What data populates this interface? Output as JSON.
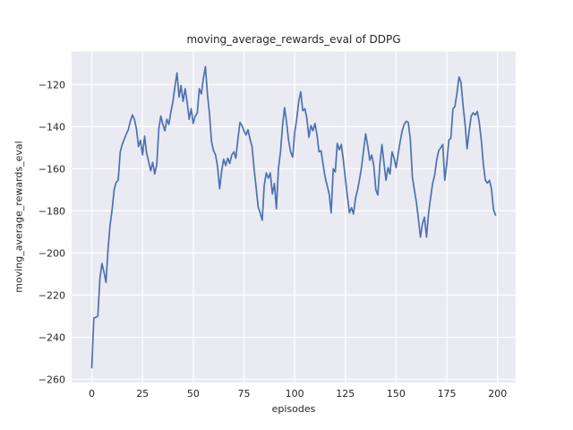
{
  "figure": {
    "background": "#ffffff"
  },
  "chart_data": {
    "type": "line",
    "title": "moving_average_rewards_eval of DDPG",
    "xlabel": "episodes",
    "ylabel": "moving_average_rewards_eval",
    "legend": "none",
    "grid": true,
    "style": {
      "axes_background": "#eaeaf2",
      "grid_color": "#ffffff",
      "line_color": "#4c72b0",
      "tick_label_color": "#262626",
      "line_width": 1.7
    },
    "xlim": [
      -9.95,
      208.95
    ],
    "ylim": [
      -261.6,
      -104.4
    ],
    "xticks": [
      0,
      25,
      50,
      75,
      100,
      125,
      150,
      175,
      200
    ],
    "yticks": [
      -120,
      -140,
      -160,
      -180,
      -200,
      -220,
      -240,
      -260
    ],
    "x_start": 0,
    "x_step": 1,
    "values": [
      -254.5,
      -231,
      -230.5,
      -230,
      -212,
      -205,
      -209,
      -214,
      -198,
      -187,
      -179.5,
      -170,
      -166.5,
      -165.5,
      -152,
      -148.5,
      -146,
      -143.5,
      -141.5,
      -137.5,
      -134.5,
      -136.5,
      -141,
      -149.5,
      -146.5,
      -153.5,
      -144.5,
      -152.5,
      -156.5,
      -161,
      -157,
      -162.5,
      -158,
      -141.5,
      -135,
      -139,
      -142,
      -136.5,
      -139,
      -133,
      -128,
      -121,
      -114.5,
      -126,
      -120.5,
      -128,
      -122,
      -128.5,
      -136.5,
      -131.5,
      -138.5,
      -135,
      -133.5,
      -122,
      -124.5,
      -117,
      -111.5,
      -124.5,
      -134,
      -147,
      -151.5,
      -153.5,
      -159,
      -169.5,
      -161,
      -155.5,
      -158.5,
      -155,
      -157.5,
      -153.5,
      -152,
      -155,
      -146,
      -138,
      -139.5,
      -142,
      -144,
      -141.5,
      -146,
      -149.5,
      -160,
      -169,
      -178,
      -181,
      -184.5,
      -168,
      -162,
      -164.5,
      -162,
      -172,
      -167,
      -179,
      -160,
      -152,
      -140,
      -131,
      -138,
      -146.5,
      -152,
      -154.5,
      -143,
      -136.5,
      -128,
      -123.5,
      -132.5,
      -131.5,
      -136,
      -145,
      -139.5,
      -142,
      -138.5,
      -144,
      -152,
      -151.5,
      -158,
      -164,
      -168,
      -172,
      -181,
      -160,
      -161.5,
      -148,
      -151,
      -148.5,
      -156,
      -165,
      -173,
      -181,
      -178.5,
      -181.5,
      -174,
      -170,
      -165,
      -159,
      -151,
      -143.5,
      -149,
      -156,
      -153.5,
      -158.5,
      -170,
      -172.5,
      -158,
      -148.5,
      -157,
      -165.5,
      -159.5,
      -162.5,
      -152,
      -155,
      -159.5,
      -153,
      -147,
      -142,
      -139,
      -137.5,
      -138,
      -146,
      -164,
      -170,
      -176,
      -184,
      -192.5,
      -186,
      -183,
      -192.5,
      -181,
      -174,
      -167,
      -163,
      -156,
      -151.5,
      -150,
      -148.5,
      -165.5,
      -157,
      -146.5,
      -145.5,
      -131.5,
      -130.5,
      -124,
      -116.5,
      -119,
      -130,
      -139,
      -150.5,
      -142,
      -135,
      -133.5,
      -134.5,
      -132.8,
      -138,
      -146.5,
      -158,
      -165.5,
      -166.8,
      -165.5,
      -169.5,
      -179.5,
      -182
    ]
  }
}
